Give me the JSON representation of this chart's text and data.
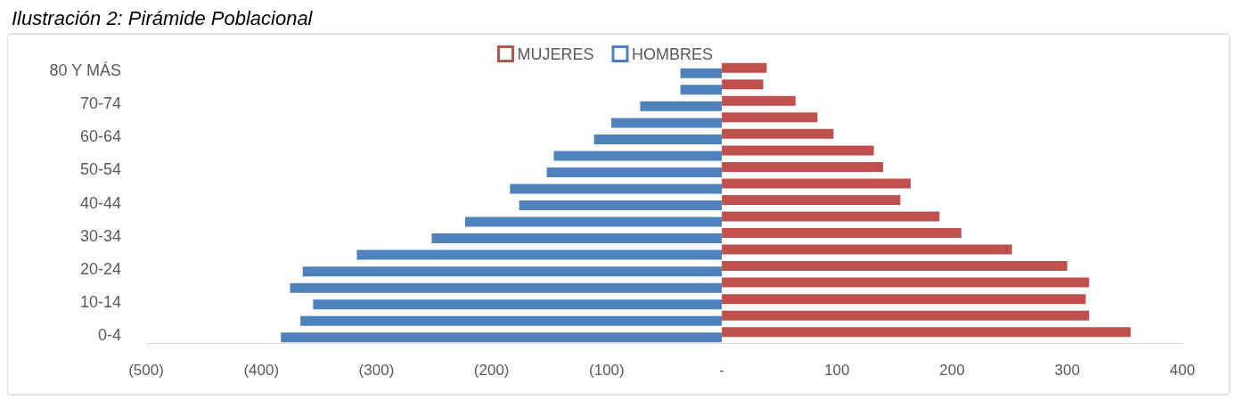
{
  "chart_data": {
    "type": "bar",
    "title": "Ilustración 2: Pirámide Poblacional",
    "orientation": "horizontal",
    "categories": [
      "80 Y MÁS",
      null,
      "70-74",
      null,
      "60-64",
      null,
      "50-54",
      null,
      "40-44",
      null,
      "30-34",
      null,
      "20-24",
      null,
      "10-14",
      null,
      "0-4"
    ],
    "series": [
      {
        "name": "MUJERES",
        "color": "#c0504d",
        "values": [
          39,
          36,
          64,
          83,
          97,
          132,
          140,
          164,
          155,
          189,
          208,
          252,
          300,
          319,
          316,
          319,
          355
        ]
      },
      {
        "name": "HOMBRES",
        "color": "#4f81bd",
        "values": [
          -36,
          -36,
          -71,
          -96,
          -111,
          -146,
          -152,
          -184,
          -176,
          -223,
          -252,
          -317,
          -364,
          -375,
          -355,
          -366,
          -383
        ]
      }
    ],
    "xlim": [
      -500,
      400
    ],
    "xticks": [
      {
        "value": -500,
        "label": "(500)"
      },
      {
        "value": -400,
        "label": "(400)"
      },
      {
        "value": -300,
        "label": "(300)"
      },
      {
        "value": -200,
        "label": "(200)"
      },
      {
        "value": -100,
        "label": "(100)"
      },
      {
        "value": 0,
        "label": "-"
      },
      100,
      200,
      300,
      400
    ],
    "legend": "top",
    "grid": false
  }
}
